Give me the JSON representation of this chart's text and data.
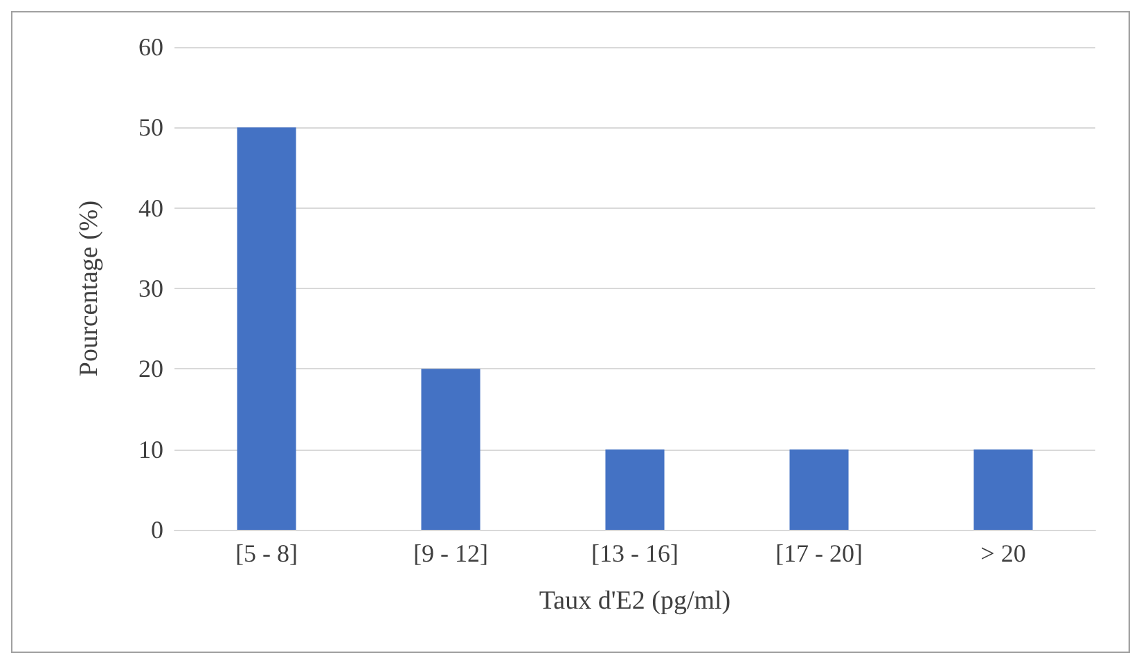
{
  "chart_data": {
    "type": "bar",
    "xlabel": "Taux d'E2 (pg/ml)",
    "ylabel": "Pourcentage (%)",
    "categories": [
      "[5 - 8]",
      "[9 - 12]",
      "[13 - 16]",
      "[17 - 20]",
      "> 20"
    ],
    "values": [
      50,
      20,
      10,
      10,
      10
    ],
    "color": "#4472c4",
    "ylim": [
      0,
      60
    ],
    "yticks": [
      0,
      10,
      20,
      30,
      40,
      50,
      60
    ],
    "grid": "y"
  }
}
